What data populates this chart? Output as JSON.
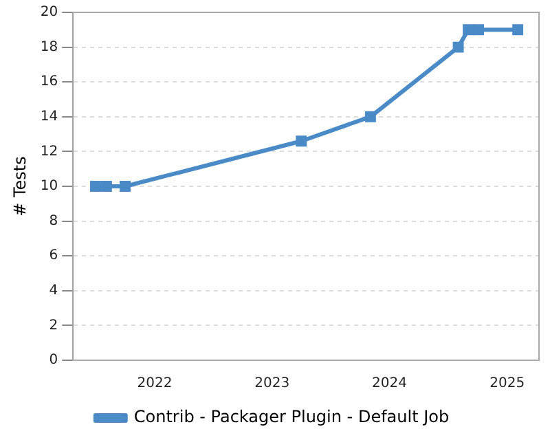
{
  "chart_data": {
    "type": "line",
    "ylabel": "# Tests",
    "x": [
      "2021-07-01",
      "2021-08-04",
      "2021-10-01",
      "2023-04-02",
      "2023-11-03",
      "2024-08-02",
      "2024-09-02",
      "2024-10-04",
      "2025-02-03"
    ],
    "series": [
      {
        "name": "Contrib - Packager Plugin - Default Job",
        "color": "#4a8ac6",
        "values": [
          10,
          10,
          10,
          12.6,
          14,
          18,
          19,
          19,
          19
        ]
      }
    ],
    "xlim": [
      "2021-04-22",
      "2025-04-10"
    ],
    "xticks": [
      "2022",
      "2023",
      "2024",
      "2025"
    ],
    "ylim": [
      0,
      20
    ],
    "yticks": [
      0,
      2,
      4,
      6,
      8,
      10,
      12,
      14,
      16,
      18,
      20
    ],
    "grid": "y",
    "legend": "bottom",
    "marker": "square",
    "line_style": "solid"
  }
}
